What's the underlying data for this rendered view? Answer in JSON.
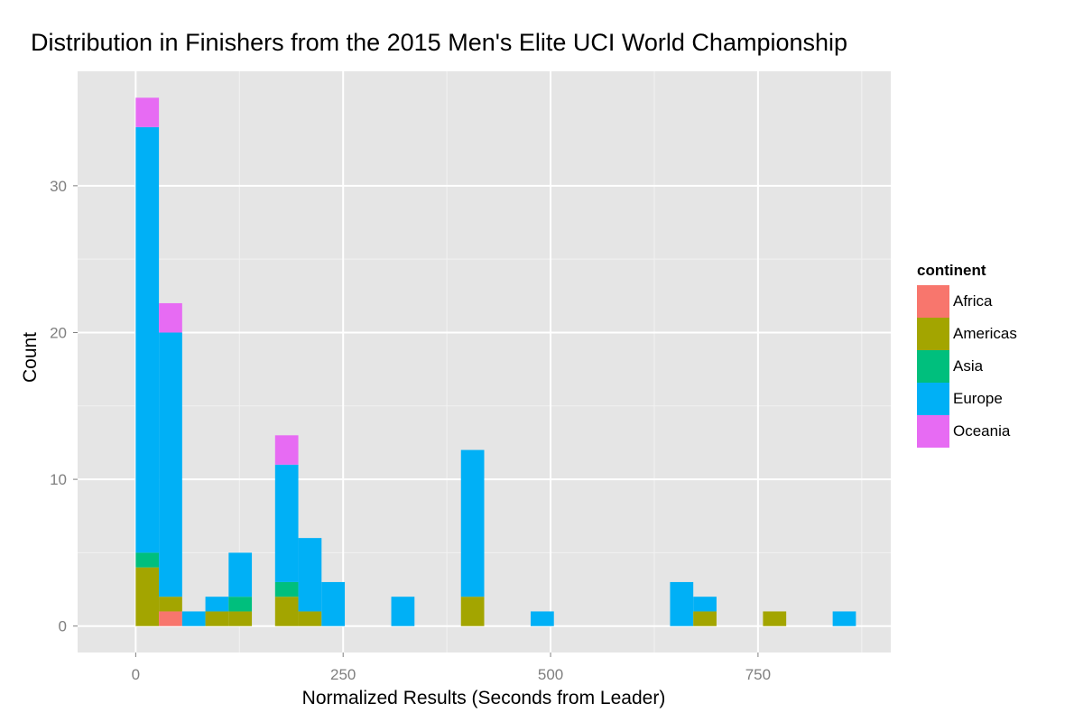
{
  "chart_data": {
    "type": "bar",
    "stacked": true,
    "title": "Distribution in Finishers from the 2015 Men's Elite UCI World Championship",
    "xlabel": "Normalized Results (Seconds from Leader)",
    "ylabel": "Count",
    "xlim": [
      -70,
      910
    ],
    "ylim": [
      -1.8,
      37.8
    ],
    "x_ticks": [
      0,
      250,
      500,
      750
    ],
    "y_ticks": [
      0,
      10,
      20,
      30
    ],
    "bin_width": 28,
    "grid": true,
    "legend": {
      "title": "continent",
      "position": "right"
    },
    "bins": [
      0,
      28,
      56,
      84,
      112,
      168,
      196,
      224,
      308,
      392,
      476,
      644,
      672,
      756,
      840
    ],
    "series": [
      {
        "name": "Africa",
        "color": "#F8766D",
        "values": [
          0,
          1,
          0,
          0,
          0,
          0,
          0,
          0,
          0,
          0,
          0,
          0,
          0,
          0,
          0
        ]
      },
      {
        "name": "Americas",
        "color": "#A3A500",
        "values": [
          4,
          1,
          0,
          1,
          1,
          2,
          1,
          0,
          0,
          2,
          0,
          0,
          1,
          1,
          0
        ]
      },
      {
        "name": "Asia",
        "color": "#00BF7D",
        "values": [
          1,
          0,
          0,
          0,
          1,
          1,
          0,
          0,
          0,
          0,
          0,
          0,
          0,
          0,
          0
        ]
      },
      {
        "name": "Europe",
        "color": "#00B0F6",
        "values": [
          29,
          18,
          1,
          1,
          3,
          8,
          5,
          3,
          2,
          10,
          1,
          3,
          1,
          0,
          1
        ]
      },
      {
        "name": "Oceania",
        "color": "#E76BF3",
        "values": [
          2,
          2,
          0,
          0,
          0,
          2,
          0,
          0,
          0,
          0,
          0,
          0,
          0,
          0,
          0
        ]
      }
    ]
  }
}
